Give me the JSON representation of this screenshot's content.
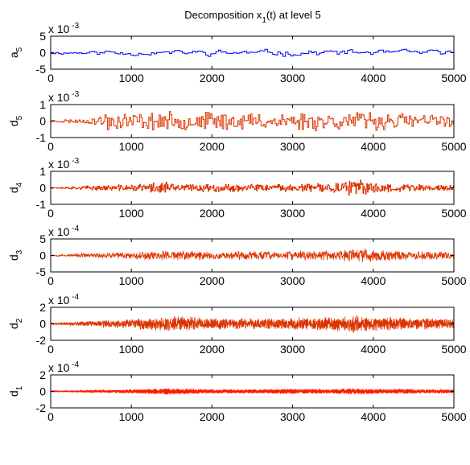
{
  "figure": {
    "title_main": "Decomposition x",
    "title_sub": "1",
    "title_tail": "(t) at level 5"
  },
  "chart_data": [
    {
      "type": "line",
      "name": "a",
      "name_sub": "5",
      "exponent": "-3",
      "exponent_prefix": "x 10",
      "ylim": [
        -5,
        5
      ],
      "yticks": [
        -5,
        0,
        5
      ],
      "xlim": [
        0,
        5000
      ],
      "xticks": [
        0,
        1000,
        2000,
        3000,
        4000,
        5000
      ],
      "color": "#0000ff",
      "style": "step",
      "signal": {
        "seed": 11,
        "amp": 1.6,
        "period": 32,
        "noise": 0.55,
        "x": [
          0,
          500,
          700,
          1000,
          1500,
          2000,
          2500,
          2900,
          3000,
          3500,
          4000,
          4500,
          5000
        ],
        "env": [
          0.45,
          0.55,
          1.0,
          0.8,
          0.7,
          0.9,
          0.7,
          1.1,
          0.8,
          0.9,
          0.9,
          0.8,
          0.7
        ]
      }
    },
    {
      "type": "line",
      "name": "d",
      "name_sub": "5",
      "exponent": "-3",
      "exponent_prefix": "x 10",
      "ylim": [
        -1,
        1
      ],
      "yticks": [
        -1,
        0,
        1
      ],
      "xlim": [
        0,
        5000
      ],
      "xticks": [
        0,
        1000,
        2000,
        3000,
        4000,
        5000
      ],
      "color": "#dd3300",
      "style": "step",
      "signal": {
        "seed": 23,
        "amp": 0.52,
        "period": 16,
        "noise": 0.2,
        "x": [
          0,
          500,
          700,
          1000,
          1500,
          2000,
          2500,
          3000,
          3500,
          4000,
          4500,
          5000
        ],
        "env": [
          0.12,
          0.25,
          1.0,
          0.75,
          0.85,
          0.85,
          0.8,
          0.85,
          0.85,
          0.9,
          0.75,
          0.6
        ]
      }
    },
    {
      "type": "line",
      "name": "d",
      "name_sub": "4",
      "exponent": "-3",
      "exponent_prefix": "x 10",
      "ylim": [
        -1,
        1
      ],
      "yticks": [
        -1,
        0,
        1
      ],
      "xlim": [
        0,
        5000
      ],
      "xticks": [
        0,
        1000,
        2000,
        3000,
        4000,
        5000
      ],
      "color": "#dd3300",
      "style": "step",
      "signal": {
        "seed": 37,
        "amp": 0.32,
        "period": 8,
        "noise": 0.15,
        "x": [
          0,
          500,
          1000,
          1450,
          1500,
          2000,
          2500,
          3000,
          3500,
          3800,
          4000,
          4500,
          5000
        ],
        "env": [
          0.08,
          0.3,
          0.5,
          1.1,
          0.6,
          0.55,
          0.5,
          0.55,
          0.7,
          1.2,
          0.75,
          0.55,
          0.45
        ]
      }
    },
    {
      "type": "line",
      "name": "d",
      "name_sub": "3",
      "exponent": "-4",
      "exponent_prefix": "x 10",
      "ylim": [
        -5,
        5
      ],
      "yticks": [
        -5,
        0,
        5
      ],
      "xlim": [
        0,
        5000
      ],
      "xticks": [
        0,
        1000,
        2000,
        3000,
        4000,
        5000
      ],
      "color": "#dd3300",
      "style": "line",
      "signal": {
        "seed": 53,
        "amp": 1.9,
        "period": 4,
        "noise": 0.6,
        "x": [
          0,
          500,
          1000,
          1500,
          2000,
          2500,
          3000,
          3500,
          3800,
          4000,
          4500,
          5000
        ],
        "env": [
          0.08,
          0.3,
          0.5,
          0.75,
          0.6,
          0.55,
          0.6,
          0.7,
          1.0,
          0.75,
          0.6,
          0.5
        ]
      }
    },
    {
      "type": "line",
      "name": "d",
      "name_sub": "2",
      "exponent": "-4",
      "exponent_prefix": "x 10",
      "ylim": [
        -2,
        2
      ],
      "yticks": [
        -2,
        0,
        2
      ],
      "xlim": [
        0,
        5000
      ],
      "xticks": [
        0,
        1000,
        2000,
        3000,
        4000,
        5000
      ],
      "color": "#dd3300",
      "style": "line",
      "signal": {
        "seed": 71,
        "amp": 0.8,
        "period": 2,
        "noise": 0.3,
        "x": [
          0,
          500,
          1000,
          1500,
          2000,
          2500,
          3000,
          3500,
          3800,
          4000,
          4500,
          5000
        ],
        "env": [
          0.08,
          0.35,
          0.6,
          0.9,
          0.7,
          0.65,
          0.7,
          0.8,
          1.1,
          0.8,
          0.7,
          0.6
        ]
      }
    },
    {
      "type": "line",
      "name": "d",
      "name_sub": "1",
      "exponent": "-4",
      "exponent_prefix": "x 10",
      "ylim": [
        -2,
        2
      ],
      "yticks": [
        -2,
        0,
        2
      ],
      "xlim": [
        0,
        5000
      ],
      "xticks": [
        0,
        1000,
        2000,
        3000,
        4000,
        5000
      ],
      "color": "#ff1a00",
      "style": "line",
      "signal": {
        "seed": 97,
        "amp": 0.32,
        "period": 1,
        "noise": 0.12,
        "x": [
          0,
          500,
          1000,
          1500,
          2000,
          2500,
          3000,
          3500,
          3800,
          4000,
          4500,
          5000
        ],
        "env": [
          0.1,
          0.4,
          0.6,
          1.0,
          0.65,
          0.6,
          0.8,
          0.7,
          1.0,
          0.75,
          0.7,
          0.6
        ]
      }
    }
  ]
}
